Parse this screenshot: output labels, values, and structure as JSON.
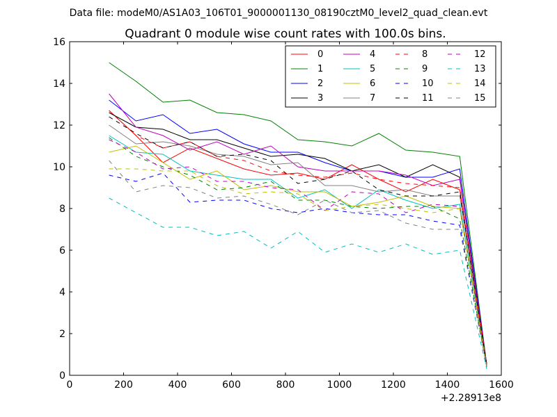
{
  "suptitle": "Data file: modeM0/AS1A03_106T01_9000001130_08190cztM0_level2_quad_clean.evt",
  "chart_data": {
    "type": "line",
    "title": "Quadrant 0 module wise count rates with 100.0s bins.",
    "xlabel": "",
    "ylabel": "",
    "x_offset_label": "+2.28913e8",
    "xlim": [
      0,
      1600
    ],
    "ylim": [
      0,
      16
    ],
    "xticks": [
      0,
      200,
      400,
      600,
      800,
      1000,
      1200,
      1400,
      1600
    ],
    "yticks": [
      0,
      2,
      4,
      6,
      8,
      10,
      12,
      14,
      16
    ],
    "grid": false,
    "legend_position": "top-right",
    "legend_columns": 4,
    "x": [
      146,
      246,
      346,
      446,
      546,
      646,
      746,
      846,
      946,
      1046,
      1146,
      1246,
      1346,
      1446,
      1546
    ],
    "series": [
      {
        "name": "0",
        "color": "#ff0000",
        "dash": "solid",
        "values": [
          12.7,
          11.5,
          10.2,
          10.9,
          10.4,
          9.9,
          9.6,
          9.7,
          9.4,
          10.1,
          9.4,
          8.8,
          9.4,
          8.9,
          0.5
        ]
      },
      {
        "name": "1",
        "color": "#008000",
        "dash": "solid",
        "values": [
          15.0,
          14.1,
          13.1,
          13.2,
          12.6,
          12.5,
          12.2,
          11.3,
          11.2,
          11.0,
          11.6,
          10.8,
          10.7,
          10.5,
          0.5
        ]
      },
      {
        "name": "2",
        "color": "#0000ff",
        "dash": "solid",
        "values": [
          13.2,
          12.2,
          12.5,
          11.6,
          11.8,
          11.1,
          10.7,
          10.7,
          10.2,
          9.8,
          9.8,
          9.5,
          9.5,
          9.9,
          0.5
        ]
      },
      {
        "name": "3",
        "color": "#000000",
        "dash": "solid",
        "values": [
          12.6,
          11.9,
          11.8,
          11.3,
          11.3,
          10.9,
          10.5,
          10.6,
          10.4,
          9.8,
          10.1,
          9.5,
          10.1,
          9.5,
          0.5
        ]
      },
      {
        "name": "4",
        "color": "#bf00bf",
        "dash": "solid",
        "values": [
          13.5,
          11.9,
          11.5,
          10.8,
          11.2,
          10.6,
          11.0,
          10.0,
          9.8,
          9.8,
          9.8,
          9.6,
          9.1,
          9.4,
          0.5
        ]
      },
      {
        "name": "5",
        "color": "#00bfbf",
        "dash": "solid",
        "values": [
          11.5,
          10.7,
          10.6,
          9.8,
          9.6,
          9.4,
          9.4,
          8.5,
          8.9,
          8.0,
          8.9,
          8.4,
          8.0,
          8.2,
          0.4
        ]
      },
      {
        "name": "6",
        "color": "#bfbf00",
        "dash": "solid",
        "values": [
          10.7,
          11.0,
          10.2,
          9.4,
          9.8,
          8.9,
          9.1,
          8.8,
          8.8,
          8.1,
          8.3,
          8.6,
          8.1,
          8.0,
          0.4
        ]
      },
      {
        "name": "7",
        "color": "#808080",
        "dash": "solid",
        "values": [
          12.0,
          11.1,
          11.2,
          11.0,
          10.6,
          10.5,
          10.1,
          10.2,
          9.1,
          9.1,
          8.8,
          8.9,
          8.6,
          8.6,
          0.5
        ]
      },
      {
        "name": "8",
        "color": "#ff0000",
        "dash": "dashed",
        "values": [
          12.7,
          11.5,
          10.9,
          11.2,
          10.5,
          10.3,
          9.8,
          9.6,
          9.5,
          9.7,
          9.4,
          9.2,
          9.1,
          9.0,
          0.5
        ]
      },
      {
        "name": "9",
        "color": "#008000",
        "dash": "dashed",
        "values": [
          11.4,
          10.5,
          10.0,
          9.6,
          8.9,
          9.0,
          9.3,
          8.4,
          8.4,
          8.1,
          8.0,
          8.1,
          8.1,
          7.5,
          0.4
        ]
      },
      {
        "name": "10",
        "color": "#0000ff",
        "dash": "dashed",
        "values": [
          9.6,
          9.3,
          9.7,
          8.3,
          8.4,
          8.4,
          8.0,
          7.8,
          8.0,
          7.8,
          7.7,
          7.7,
          7.4,
          7.2,
          0.4
        ]
      },
      {
        "name": "11",
        "color": "#000000",
        "dash": "dashed",
        "values": [
          12.4,
          11.6,
          10.9,
          11.2,
          10.5,
          10.6,
          10.3,
          9.2,
          9.4,
          9.8,
          8.9,
          8.6,
          8.6,
          8.8,
          0.5
        ]
      },
      {
        "name": "12",
        "color": "#bf00bf",
        "dash": "dashed",
        "values": [
          11.3,
          10.7,
          9.9,
          10.0,
          9.3,
          9.3,
          9.0,
          8.9,
          7.9,
          8.8,
          8.7,
          7.8,
          8.2,
          8.1,
          0.4
        ]
      },
      {
        "name": "13",
        "color": "#00bfbf",
        "dash": "dashed",
        "values": [
          8.5,
          7.8,
          7.1,
          7.1,
          6.7,
          6.9,
          6.1,
          6.9,
          5.9,
          6.3,
          5.9,
          6.3,
          5.8,
          6.0,
          0.3
        ]
      },
      {
        "name": "14",
        "color": "#bfbf00",
        "dash": "dashed",
        "values": [
          9.9,
          9.9,
          9.8,
          9.8,
          9.1,
          8.7,
          8.8,
          8.7,
          7.9,
          8.1,
          8.2,
          8.0,
          7.8,
          8.0,
          0.4
        ]
      },
      {
        "name": "15",
        "color": "#808080",
        "dash": "dashed",
        "values": [
          10.3,
          8.8,
          9.1,
          9.0,
          8.5,
          8.6,
          8.2,
          7.7,
          8.4,
          7.8,
          7.9,
          7.3,
          7.0,
          7.0,
          0.4
        ]
      }
    ]
  }
}
